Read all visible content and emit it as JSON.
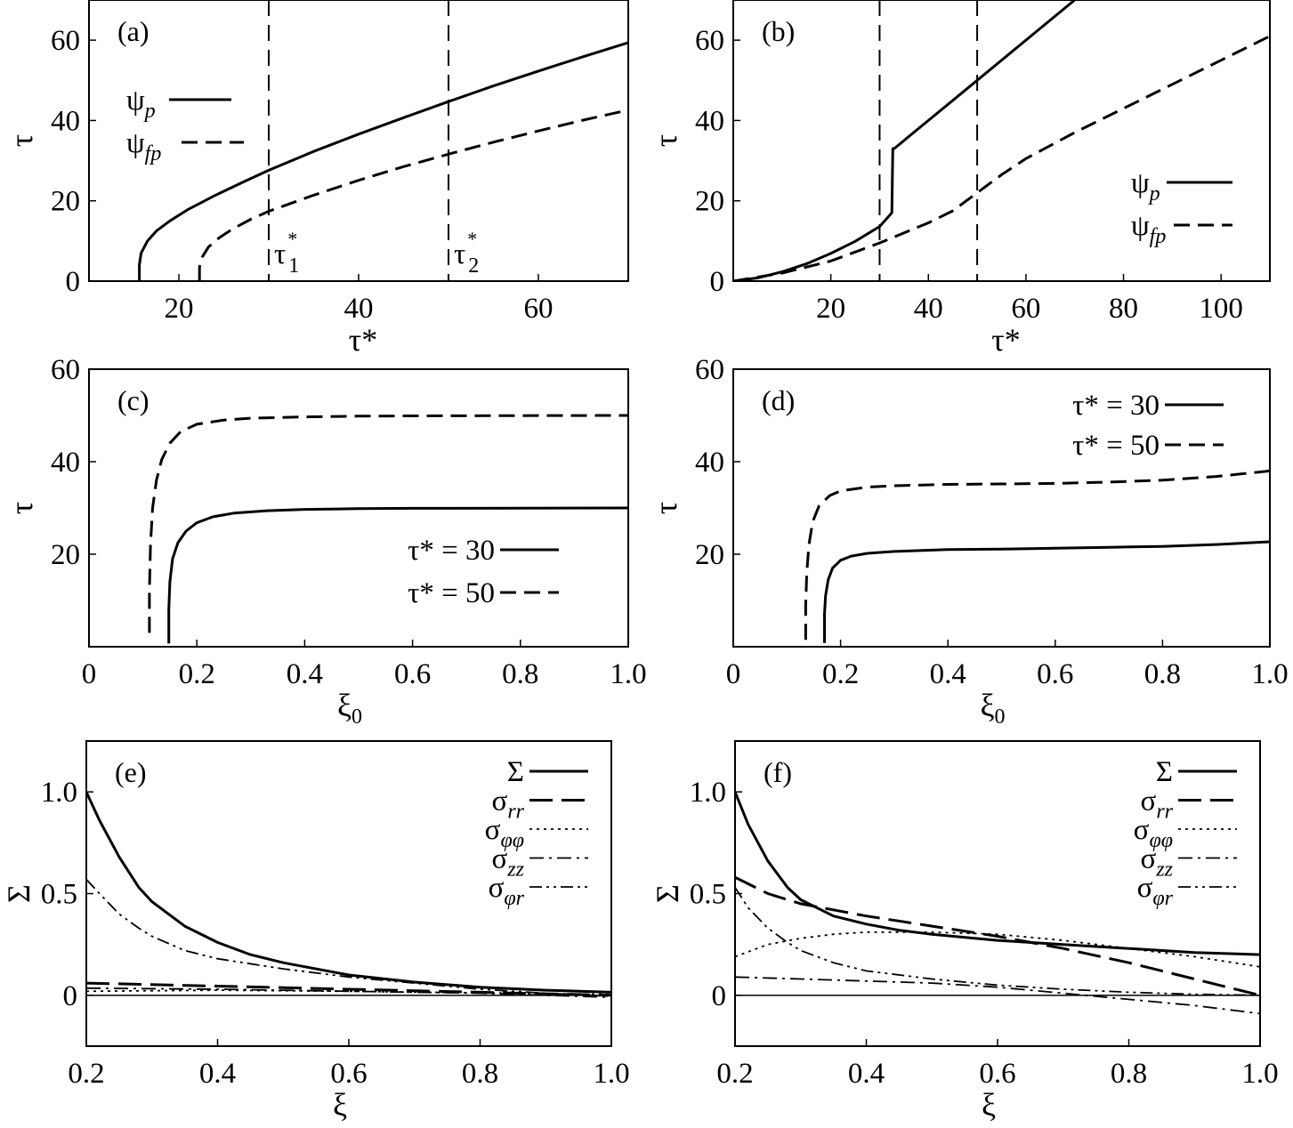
{
  "chart_data": [
    {
      "panel": "(a)",
      "type": "line",
      "xlabel": "τ*",
      "ylabel": "τ",
      "xlim": [
        10,
        70
      ],
      "ylim": [
        0,
        70
      ],
      "xticks": [
        20,
        40,
        60
      ],
      "yticks": [
        0,
        20,
        40,
        60
      ],
      "legend": {
        "position": "top-left",
        "style": "symbol-first"
      },
      "series": [
        {
          "name": "ψ",
          "sub": "p",
          "style": "solid",
          "x": [
            15.6,
            15.6,
            15.8,
            16.5,
            17.5,
            19,
            21,
            24,
            27,
            30,
            35,
            40,
            45,
            50,
            55,
            60,
            65,
            70
          ],
          "y": [
            0,
            4,
            7,
            10,
            12.5,
            15,
            17.8,
            21.3,
            24.5,
            27.6,
            32.3,
            36.6,
            40.7,
            44.7,
            48.6,
            52.3,
            55.9,
            59.4
          ]
        },
        {
          "name": "ψ",
          "sub": "fp",
          "style": "dashed",
          "x": [
            22.3,
            22.3,
            22.6,
            23.3,
            24.5,
            26,
            28,
            30,
            35,
            40,
            45,
            50,
            55,
            60,
            65,
            70
          ],
          "y": [
            0,
            3.5,
            6,
            8.5,
            10.8,
            13,
            15.4,
            17.4,
            21.4,
            25.1,
            28.5,
            31.6,
            34.6,
            37.4,
            40.1,
            42.6
          ]
        }
      ],
      "vlines": [
        {
          "x": 30,
          "label": "τ",
          "sub": "1",
          "sup": "*"
        },
        {
          "x": 50,
          "label": "τ",
          "sub": "2",
          "sup": "*"
        }
      ]
    },
    {
      "panel": "(b)",
      "type": "line",
      "xlabel": "τ*",
      "ylabel": "τ",
      "xlim": [
        0,
        110
      ],
      "ylim": [
        0,
        70
      ],
      "xticks": [
        20,
        40,
        60,
        80,
        100
      ],
      "yticks": [
        0,
        20,
        40,
        60
      ],
      "legend": {
        "position": "middle-right",
        "style": "symbol-first"
      },
      "series": [
        {
          "name": "ψ",
          "sub": "p",
          "style": "solid",
          "x": [
            0,
            5,
            10,
            15,
            20,
            25,
            30,
            32.5,
            32.7,
            33,
            40,
            50,
            60,
            70
          ],
          "y": [
            0,
            0.8,
            2.3,
            4.3,
            6.9,
            9.9,
            13.6,
            17,
            33,
            33,
            40,
            50,
            60,
            70
          ]
        },
        {
          "name": "ψ",
          "sub": "fp",
          "style": "dashed",
          "x": [
            0,
            10,
            20,
            30,
            40,
            45,
            50,
            55,
            60,
            70,
            80,
            90,
            100,
            110
          ],
          "y": [
            0,
            2,
            5,
            9.5,
            14.5,
            17.5,
            22,
            26.5,
            30.5,
            37,
            43,
            49,
            55,
            61
          ]
        }
      ],
      "vlines": [
        {
          "x": 30
        },
        {
          "x": 50
        }
      ]
    },
    {
      "panel": "(c)",
      "type": "line",
      "xlabel": "ξ0",
      "ylabel": "τ",
      "xlim": [
        0,
        1.0
      ],
      "ylim": [
        0,
        60
      ],
      "xticks": [
        0,
        0.2,
        0.4,
        0.6,
        0.8,
        1.0
      ],
      "yticks": [
        20,
        40,
        60
      ],
      "legend": {
        "position": "bottom-right",
        "style": "label-first"
      },
      "series": [
        {
          "name": "τ* = 30",
          "style": "solid",
          "x": [
            0.148,
            0.148,
            0.15,
            0.155,
            0.165,
            0.18,
            0.2,
            0.23,
            0.27,
            0.33,
            0.4,
            0.5,
            0.6,
            0.8,
            1.0
          ],
          "y": [
            0.7,
            8,
            14,
            19,
            22.5,
            25,
            26.8,
            28.1,
            28.9,
            29.4,
            29.7,
            29.85,
            29.92,
            29.97,
            30
          ]
        },
        {
          "name": "τ* = 50",
          "style": "dashed",
          "x": [
            0.112,
            0.112,
            0.114,
            0.118,
            0.125,
            0.135,
            0.15,
            0.17,
            0.2,
            0.25,
            0.3,
            0.4,
            0.5,
            0.6,
            0.8,
            1.0
          ],
          "y": [
            3,
            12,
            22,
            30,
            36,
            40.5,
            44,
            46.5,
            48.1,
            49,
            49.4,
            49.7,
            49.85,
            49.9,
            49.97,
            50
          ]
        }
      ]
    },
    {
      "panel": "(d)",
      "type": "line",
      "xlabel": "ξ0",
      "ylabel": "τ",
      "xlim": [
        0,
        1.0
      ],
      "ylim": [
        0,
        60
      ],
      "xticks": [
        0,
        0.2,
        0.4,
        0.6,
        0.8,
        1.0
      ],
      "yticks": [
        20,
        40,
        60
      ],
      "legend": {
        "position": "top-right",
        "style": "label-first"
      },
      "series": [
        {
          "name": "τ* = 30",
          "style": "solid",
          "x": [
            0.17,
            0.17,
            0.172,
            0.177,
            0.185,
            0.2,
            0.22,
            0.25,
            0.3,
            0.4,
            0.5,
            0.6,
            0.7,
            0.8,
            0.9,
            1.0
          ],
          "y": [
            0.8,
            7,
            11,
            14.5,
            17,
            18.7,
            19.6,
            20.2,
            20.6,
            21,
            21.1,
            21.3,
            21.5,
            21.7,
            22.1,
            22.7
          ]
        },
        {
          "name": "τ* = 50",
          "style": "dashed",
          "x": [
            0.135,
            0.135,
            0.137,
            0.141,
            0.148,
            0.16,
            0.18,
            0.2,
            0.25,
            0.3,
            0.4,
            0.5,
            0.6,
            0.7,
            0.8,
            0.9,
            1.0
          ],
          "y": [
            1.5,
            9,
            16,
            22,
            27,
            30.5,
            32.7,
            33.7,
            34.5,
            34.8,
            35.1,
            35.2,
            35.3,
            35.6,
            36,
            36.8,
            38
          ]
        }
      ]
    },
    {
      "panel": "(e)",
      "type": "line",
      "xlabel": "ξ",
      "ylabel": "Σ",
      "xlim": [
        0.2,
        1.0
      ],
      "ylim": [
        -0.25,
        1.25
      ],
      "xticks": [
        0.2,
        0.4,
        0.6,
        0.8,
        1.0
      ],
      "yticks": [
        0,
        0.5,
        1.0
      ],
      "legend": {
        "position": "top-right",
        "style": "label-first"
      },
      "zero_line": true,
      "series": [
        {
          "name": "Σ",
          "style": "solid",
          "x": [
            0.2,
            0.22,
            0.25,
            0.28,
            0.3,
            0.35,
            0.4,
            0.45,
            0.5,
            0.6,
            0.7,
            0.8,
            0.9,
            1.0
          ],
          "y": [
            1.0,
            0.86,
            0.68,
            0.53,
            0.46,
            0.34,
            0.26,
            0.2,
            0.16,
            0.1,
            0.065,
            0.04,
            0.025,
            0.015
          ]
        },
        {
          "name": "σ",
          "sub": "rr",
          "style": "longdash",
          "x": [
            0.2,
            0.4,
            0.6,
            0.8,
            1.0
          ],
          "y": [
            0.06,
            0.045,
            0.03,
            0.015,
            0.0
          ]
        },
        {
          "name": "σ",
          "sub": "φφ",
          "style": "dotted",
          "x": [
            0.2,
            0.4,
            0.6,
            0.8,
            1.0
          ],
          "y": [
            0.02,
            0.025,
            0.02,
            0.012,
            0.005
          ]
        },
        {
          "name": "σ",
          "sub": "zz",
          "style": "dashdot",
          "x": [
            0.2,
            0.4,
            0.6,
            0.8,
            1.0
          ],
          "y": [
            0.035,
            0.03,
            0.02,
            0.01,
            -0.01
          ]
        },
        {
          "name": "σ",
          "sub": "φr",
          "style": "dashdotdot",
          "x": [
            0.2,
            0.22,
            0.25,
            0.28,
            0.3,
            0.35,
            0.4,
            0.5,
            0.6,
            0.7,
            0.8,
            0.9,
            1.0
          ],
          "y": [
            0.57,
            0.5,
            0.4,
            0.33,
            0.29,
            0.22,
            0.18,
            0.13,
            0.09,
            0.06,
            0.03,
            0.01,
            -0.005
          ]
        }
      ]
    },
    {
      "panel": "(f)",
      "type": "line",
      "xlabel": "ξ",
      "ylabel": "Σ",
      "xlim": [
        0.2,
        1.0
      ],
      "ylim": [
        -0.25,
        1.25
      ],
      "xticks": [
        0.2,
        0.4,
        0.6,
        0.8,
        1.0
      ],
      "yticks": [
        0,
        0.5,
        1.0
      ],
      "legend": {
        "position": "top-right",
        "style": "label-first"
      },
      "zero_line": true,
      "series": [
        {
          "name": "Σ",
          "style": "solid",
          "x": [
            0.2,
            0.22,
            0.25,
            0.28,
            0.3,
            0.35,
            0.4,
            0.45,
            0.5,
            0.6,
            0.7,
            0.8,
            0.9,
            1.0
          ],
          "y": [
            1.0,
            0.84,
            0.66,
            0.53,
            0.47,
            0.39,
            0.35,
            0.32,
            0.3,
            0.27,
            0.25,
            0.23,
            0.21,
            0.2
          ]
        },
        {
          "name": "σ",
          "sub": "rr",
          "style": "longdash",
          "x": [
            0.2,
            0.25,
            0.3,
            0.35,
            0.4,
            0.5,
            0.6,
            0.7,
            0.8,
            0.9,
            1.0
          ],
          "y": [
            0.58,
            0.5,
            0.45,
            0.42,
            0.39,
            0.34,
            0.29,
            0.23,
            0.16,
            0.08,
            0.0
          ]
        },
        {
          "name": "σ",
          "sub": "φφ",
          "style": "dotted",
          "x": [
            0.2,
            0.25,
            0.3,
            0.35,
            0.4,
            0.5,
            0.6,
            0.7,
            0.8,
            0.9,
            1.0
          ],
          "y": [
            0.19,
            0.25,
            0.28,
            0.3,
            0.31,
            0.31,
            0.3,
            0.27,
            0.23,
            0.19,
            0.14
          ]
        },
        {
          "name": "σ",
          "sub": "zz",
          "style": "dashdot",
          "x": [
            0.2,
            0.3,
            0.4,
            0.5,
            0.6,
            0.7,
            0.8,
            0.9,
            1.0
          ],
          "y": [
            0.09,
            0.08,
            0.07,
            0.06,
            0.04,
            0.01,
            -0.02,
            -0.05,
            -0.09
          ]
        },
        {
          "name": "σ",
          "sub": "φr",
          "style": "dashdotdot",
          "x": [
            0.2,
            0.22,
            0.25,
            0.28,
            0.3,
            0.35,
            0.4,
            0.5,
            0.6,
            0.7,
            0.8,
            0.9,
            1.0
          ],
          "y": [
            0.53,
            0.43,
            0.33,
            0.26,
            0.22,
            0.16,
            0.12,
            0.08,
            0.05,
            0.03,
            0.015,
            0.005,
            0.0
          ]
        }
      ]
    }
  ]
}
